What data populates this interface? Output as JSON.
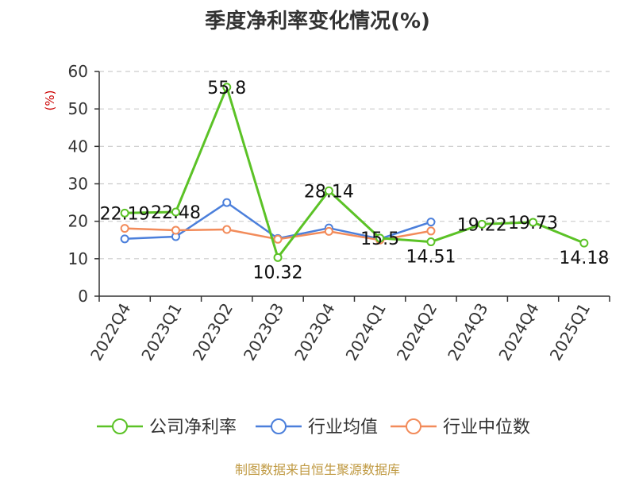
{
  "chart_data": {
    "type": "line",
    "title": "季度净利率变化情况(%)",
    "ylabel": "(%)",
    "xlabel": "",
    "ylim": [
      0,
      60
    ],
    "yticks": [
      0,
      10,
      20,
      30,
      40,
      50,
      60
    ],
    "grid": true,
    "legend_position": "bottom",
    "categories": [
      "2022Q4",
      "2023Q1",
      "2023Q2",
      "2023Q3",
      "2023Q4",
      "2024Q1",
      "2024Q2",
      "2024Q3",
      "2024Q4",
      "2025Q1"
    ],
    "series": [
      {
        "name": "公司净利率",
        "color": "#5bc226",
        "values": [
          22.19,
          22.48,
          55.8,
          10.32,
          28.14,
          15.5,
          14.51,
          19.22,
          19.73,
          14.18
        ],
        "labels": [
          "22.19",
          "22.48",
          "55.8",
          "10.32",
          "28.14",
          "15.5",
          "14.51",
          "19.22",
          "19.73",
          "14.18"
        ]
      },
      {
        "name": "行业均值",
        "color": "#4b7fdb",
        "values": [
          15.3,
          15.9,
          25.0,
          15.4,
          18.2,
          15.3,
          19.8,
          null,
          null,
          null
        ]
      },
      {
        "name": "行业中位数",
        "color": "#f28b5a",
        "values": [
          18.1,
          17.6,
          17.8,
          15.2,
          17.3,
          15.0,
          17.4,
          null,
          null,
          null
        ]
      }
    ],
    "ylabel_color": "#cc0000"
  },
  "footer": {
    "source": "制图数据来自恒生聚源数据库"
  }
}
